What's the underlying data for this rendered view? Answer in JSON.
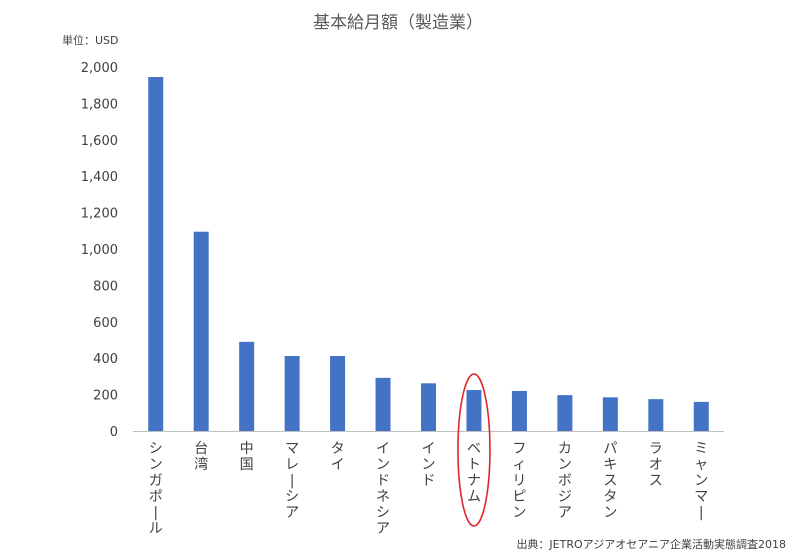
{
  "chart_data": {
    "type": "bar",
    "title": "基本給月額（製造業）",
    "unit_label": "単位：USD",
    "source": "出典：JETROアジアオセアニア企業活動実態調査2018",
    "categories": [
      "シンガポール",
      "台湾",
      "中国",
      "マレーシア",
      "タイ",
      "インドネシア",
      "インド",
      "ベトナム",
      "フィリピン",
      "カンボジア",
      "パキスタン",
      "ラオス",
      "ミャンマー"
    ],
    "values": [
      1945,
      1095,
      490,
      412,
      412,
      292,
      262,
      225,
      220,
      197,
      185,
      175,
      160
    ],
    "ylim": [
      0,
      2000
    ],
    "yticks": [
      0,
      200,
      400,
      600,
      800,
      1000,
      1200,
      1400,
      1600,
      1800,
      2000
    ],
    "ytick_labels": [
      "0",
      "200",
      "400",
      "600",
      "800",
      "1,000",
      "1,200",
      "1,400",
      "1,600",
      "1,800",
      "2,000"
    ],
    "highlighted_category": "ベトナム",
    "grid": false,
    "colors": {
      "bar": "#4472c4",
      "highlight": "#e0262b",
      "axis": "#bfbfbf",
      "text": "#404040"
    }
  }
}
